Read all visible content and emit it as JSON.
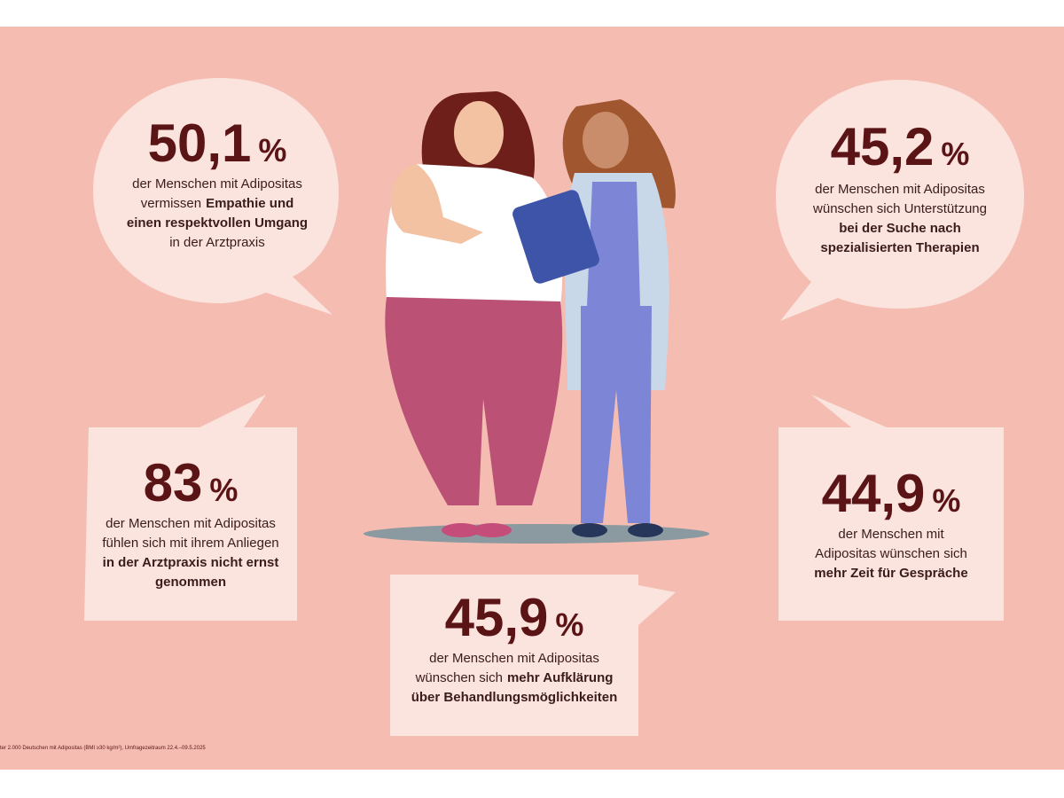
{
  "bubbles": [
    {
      "number": "50,1",
      "unit": "%",
      "lines": [
        [
          {
            "text": "der Menschen mit Adipositas",
            "bold": false
          }
        ],
        [
          {
            "text": "vermissen",
            "bold": false
          },
          {
            "text": "Empathie und",
            "bold": true
          }
        ],
        [
          {
            "text": "einen respektvollen Umgang",
            "bold": true
          }
        ],
        [
          {
            "text": "in der Arztpraxis",
            "bold": false
          }
        ]
      ]
    },
    {
      "number": "45,2",
      "unit": "%",
      "lines": [
        [
          {
            "text": "der Menschen mit Adipositas",
            "bold": false
          }
        ],
        [
          {
            "text": "wünschen sich Unterstützung",
            "bold": false
          }
        ],
        [
          {
            "text": "bei der Suche nach",
            "bold": true
          }
        ],
        [
          {
            "text": "spezialisierten Therapien",
            "bold": true
          }
        ]
      ]
    },
    {
      "number": "83",
      "unit": "%",
      "lines": [
        [
          {
            "text": "der Menschen mit Adipositas",
            "bold": false
          }
        ],
        [
          {
            "text": "fühlen sich mit ihrem Anliegen",
            "bold": false
          }
        ],
        [
          {
            "text": "in der Arztpraxis nicht ernst",
            "bold": true
          }
        ],
        [
          {
            "text": "genommen",
            "bold": true
          }
        ]
      ]
    },
    {
      "number": "44,9",
      "unit": "%",
      "lines": [
        [
          {
            "text": "der Menschen mit",
            "bold": false
          }
        ],
        [
          {
            "text": "Adipositas wünschen sich",
            "bold": false
          }
        ],
        [
          {
            "text": "mehr Zeit für Gespräche",
            "bold": true
          }
        ]
      ]
    },
    {
      "number": "45,9",
      "unit": "%",
      "lines": [
        [
          {
            "text": "der Menschen mit Adipositas",
            "bold": false
          }
        ],
        [
          {
            "text": "wünschen sich",
            "bold": false
          },
          {
            "text": "mehr Aufklärung",
            "bold": true
          }
        ],
        [
          {
            "text": "über Behandlungsmöglichkeiten",
            "bold": true
          }
        ]
      ]
    }
  ],
  "footnote": "ter 2.000 Deutschen mit Adipositas (BMI ≥30 kg/m²), Umfragezeitraum 22.4.–09.5.2025"
}
